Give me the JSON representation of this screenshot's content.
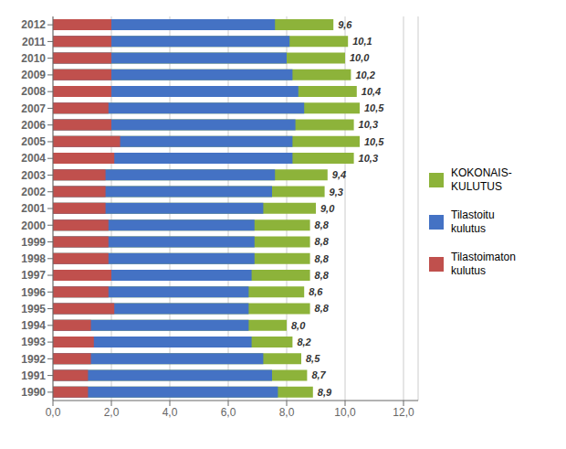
{
  "chart_data": {
    "type": "bar",
    "orientation": "horizontal",
    "grid": true,
    "legend": "right",
    "data_labels": true,
    "categories": [
      "2012",
      "2011",
      "2010",
      "2009",
      "2008",
      "2007",
      "2006",
      "2005",
      "2004",
      "2003",
      "2002",
      "2001",
      "2000",
      "1999",
      "1998",
      "1997",
      "1996",
      "1995",
      "1994",
      "1993",
      "1992",
      "1991",
      "1990"
    ],
    "series": [
      {
        "name": "KOKONAIS-\nKULUTUS",
        "color": "#8DB33A",
        "values": [
          9.6,
          10.1,
          10.0,
          10.2,
          10.4,
          10.5,
          10.3,
          10.5,
          10.3,
          9.4,
          9.3,
          9.0,
          8.8,
          8.8,
          8.8,
          8.8,
          8.6,
          8.8,
          8.0,
          8.2,
          8.5,
          8.7,
          8.9
        ],
        "value_labels": [
          "9,6",
          "10,1",
          "10,0",
          "10,2",
          "10,4",
          "10,5",
          "10,3",
          "10,5",
          "10,3",
          "9,4",
          "9,3",
          "9,0",
          "8,8",
          "8,8",
          "8,8",
          "8,8",
          "8,6",
          "8,8",
          "8,0",
          "8,2",
          "8,5",
          "8,7",
          "8,9"
        ]
      },
      {
        "name": "Tilastoitu\nkulutus",
        "color": "#4472C4",
        "values": [
          7.6,
          8.1,
          8.0,
          8.2,
          8.4,
          8.6,
          8.3,
          8.2,
          8.2,
          7.6,
          7.5,
          7.2,
          6.9,
          6.9,
          6.9,
          6.8,
          6.7,
          6.7,
          6.7,
          6.8,
          7.2,
          7.5,
          7.7
        ]
      },
      {
        "name": "Tilastoimaton\nkulutus",
        "color": "#C0504D",
        "values": [
          2.0,
          2.0,
          2.0,
          2.0,
          2.0,
          1.9,
          2.0,
          2.3,
          2.1,
          1.8,
          1.8,
          1.8,
          1.9,
          1.9,
          1.9,
          2.0,
          1.9,
          2.1,
          1.3,
          1.4,
          1.3,
          1.2,
          1.2
        ]
      }
    ],
    "xlim": [
      0,
      12.5
    ],
    "xticks": [
      {
        "value": 0,
        "label": "0,0"
      },
      {
        "value": 2,
        "label": "2,0"
      },
      {
        "value": 4,
        "label": "4,0"
      },
      {
        "value": 6,
        "label": "6,0"
      },
      {
        "value": 8,
        "label": "8,0"
      },
      {
        "value": 10,
        "label": "10,0"
      },
      {
        "value": 12,
        "label": "12,0"
      }
    ]
  }
}
